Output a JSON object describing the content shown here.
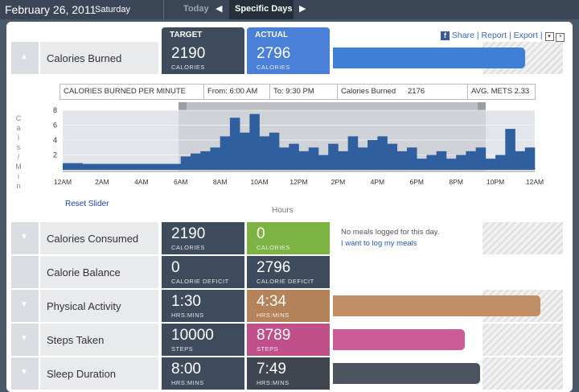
{
  "header": {
    "date": "February 26, 2011",
    "weekday": "Saturday",
    "tabs": [
      "Today",
      "Specific Days"
    ]
  },
  "links": [
    "Share",
    "Report",
    "Export"
  ],
  "columns": [
    "TARGET",
    "ACTUAL"
  ],
  "rows": [
    {
      "label": "Calories Burned",
      "target": "2190",
      "target_unit": "CALORIES",
      "actual": "2796",
      "actual_unit": "CALORIES",
      "color": "#4a80d8",
      "bar_color": "#3f7fd6"
    },
    {
      "label": "Calories Consumed",
      "target": "2190",
      "target_unit": "CALORIES",
      "actual": "0",
      "actual_unit": "CALORIES",
      "color": "#7cb342",
      "note": "No meals logged for this day.",
      "link": "I want to log my meals"
    },
    {
      "label": "Calorie Balance",
      "target": "0",
      "target_unit": "CALORIE DEFICIT",
      "actual": "2796",
      "actual_unit": "CALORIE DEFICIT",
      "color": "#3d4b5d"
    },
    {
      "label": "Physical Activity",
      "target": "1:30",
      "target_unit": "HRS:MINS",
      "actual": "4:34",
      "actual_unit": "HRS:MINS",
      "color": "#b5835a",
      "bar_color": "#c28e66"
    },
    {
      "label": "Steps Taken",
      "target": "10000",
      "target_unit": "STEPS",
      "actual": "8789",
      "actual_unit": "STEPS",
      "color": "#c0508a",
      "bar_color": "#cc5c99"
    },
    {
      "label": "Sleep Duration",
      "target": "8:00",
      "target_unit": "HRS:MINS",
      "actual": "7:49",
      "actual_unit": "HRS:MINS",
      "color": "#3f4650",
      "bar_color": "#4b5260"
    }
  ],
  "chart": {
    "type": "bar",
    "title": "CALORIES BURNED PER MINUTE",
    "from": "From: 6:00 AM",
    "to": "To: 9:30 PM",
    "stat_label": "Calories Burned",
    "stat_value": "2176",
    "mets": "AVG. METS 2.33",
    "y_label": "Cals/Min",
    "x_label": "Hours",
    "reset": "Reset Slider",
    "xticks": [
      "12AM",
      "2AM",
      "4AM",
      "6AM",
      "8AM",
      "10AM",
      "12PM",
      "2PM",
      "4PM",
      "6PM",
      "8PM",
      "10PM",
      "12AM"
    ],
    "values": [
      0.9,
      0.9,
      0.8,
      0.8,
      0.8,
      0.8,
      0.8,
      0.8,
      0.8,
      0.8,
      0.8,
      0.8,
      1.8,
      2.2,
      2.5,
      3.0,
      4.5,
      7.0,
      5.0,
      7.5,
      4.5,
      5.0,
      3.0,
      3.5,
      2.5,
      3.0,
      2.0,
      3.5,
      2.5,
      4.5,
      3.0,
      4.0,
      4.5,
      3.5,
      2.5,
      3.0,
      1.5,
      2.0,
      2.5,
      1.5,
      2.0,
      2.5,
      3.0,
      1.5,
      2.0,
      5.5,
      2.5,
      3.0
    ],
    "ylim": [
      0,
      8
    ],
    "yticks": [
      2,
      4,
      6,
      8
    ],
    "color": "#2f5f9f"
  }
}
